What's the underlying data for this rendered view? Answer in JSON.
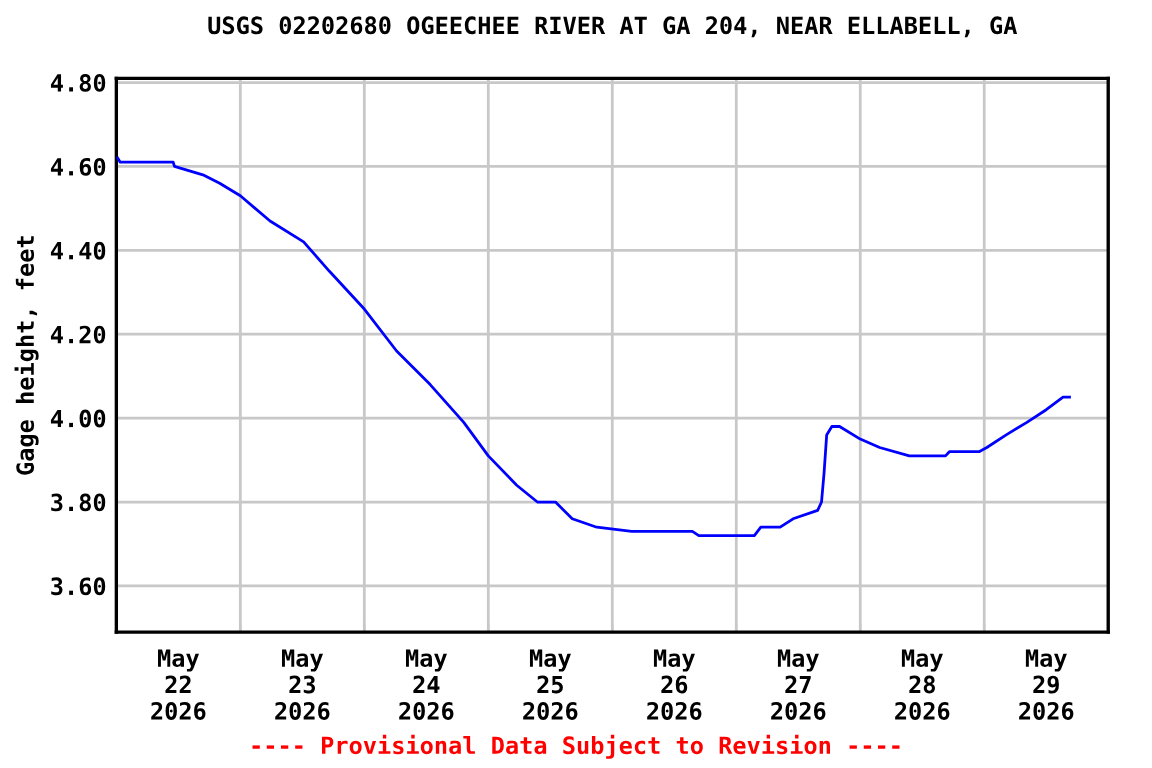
{
  "chart_data": {
    "type": "line",
    "title": "USGS 02202680 OGEECHEE RIVER AT GA 204, NEAR ELLABELL, GA",
    "ylabel": "Gage height, feet",
    "annotations": [
      "---- Provisional Data Subject to Revision ----"
    ],
    "series": [
      {
        "color": "#0000ff",
        "x": [
          "2026-05-22T00:15",
          "2026-05-22T00:45",
          "2026-05-22T11:00",
          "2026-05-22T11:15",
          "2026-05-22T14:00",
          "2026-05-22T16:45",
          "2026-05-22T20:00",
          "2026-05-23T00:00",
          "2026-05-23T05:45",
          "2026-05-23T12:15",
          "2026-05-23T17:15",
          "2026-05-24T00:00",
          "2026-05-24T06:15",
          "2026-05-24T12:45",
          "2026-05-24T19:15",
          "2026-05-25T00:00",
          "2026-05-25T05:30",
          "2026-05-25T09:30",
          "2026-05-25T13:00",
          "2026-05-25T16:15",
          "2026-05-25T21:00",
          "2026-05-26T03:45",
          "2026-05-26T15:30",
          "2026-05-26T16:45",
          "2026-05-27T03:30",
          "2026-05-27T04:45",
          "2026-05-27T08:30",
          "2026-05-27T11:00",
          "2026-05-27T15:45",
          "2026-05-27T16:30",
          "2026-05-27T17:00",
          "2026-05-27T17:30",
          "2026-05-27T18:30",
          "2026-05-27T20:00",
          "2026-05-28T00:00",
          "2026-05-28T03:45",
          "2026-05-28T09:30",
          "2026-05-28T16:30",
          "2026-05-28T17:15",
          "2026-05-28T23:00",
          "2026-05-29T00:30",
          "2026-05-29T04:15",
          "2026-05-29T08:15",
          "2026-05-29T12:00",
          "2026-05-29T15:15",
          "2026-05-29T16:30"
        ],
        "values": [
          4.62,
          4.61,
          4.61,
          4.6,
          4.59,
          4.58,
          4.56,
          4.53,
          4.47,
          4.42,
          4.35,
          4.26,
          4.16,
          4.08,
          3.99,
          3.91,
          3.84,
          3.8,
          3.8,
          3.76,
          3.74,
          3.73,
          3.73,
          3.72,
          3.72,
          3.74,
          3.74,
          3.76,
          3.78,
          3.8,
          3.87,
          3.96,
          3.98,
          3.98,
          3.95,
          3.93,
          3.91,
          3.91,
          3.92,
          3.92,
          3.93,
          3.96,
          3.99,
          4.02,
          4.05,
          4.05
        ]
      }
    ],
    "xlim": [
      "2026-05-22T00:00",
      "2026-05-30T00:00"
    ],
    "xticks": [
      {
        "value": "2026-05-22T00:00",
        "label": null
      },
      {
        "value": "2026-05-22T12:00",
        "label": "May\n22\n2026"
      },
      {
        "value": "2026-05-23T00:00",
        "label": null
      },
      {
        "value": "2026-05-23T12:00",
        "label": "May\n23\n2026"
      },
      {
        "value": "2026-05-24T00:00",
        "label": null
      },
      {
        "value": "2026-05-24T12:00",
        "label": "May\n24\n2026"
      },
      {
        "value": "2026-05-25T00:00",
        "label": null
      },
      {
        "value": "2026-05-25T12:00",
        "label": "May\n25\n2026"
      },
      {
        "value": "2026-05-26T00:00",
        "label": null
      },
      {
        "value": "2026-05-26T12:00",
        "label": "May\n26\n2026"
      },
      {
        "value": "2026-05-27T00:00",
        "label": null
      },
      {
        "value": "2026-05-27T12:00",
        "label": "May\n27\n2026"
      },
      {
        "value": "2026-05-28T00:00",
        "label": null
      },
      {
        "value": "2026-05-28T12:00",
        "label": "May\n28\n2026"
      },
      {
        "value": "2026-05-29T00:00",
        "label": null
      },
      {
        "value": "2026-05-29T12:00",
        "label": "May\n29\n2026"
      },
      {
        "value": "2026-05-30T00:00",
        "label": null
      }
    ],
    "ylim": [
      3.49,
      4.81
    ],
    "yticks": [
      {
        "value": 3.6,
        "label": "3.60"
      },
      {
        "value": 3.8,
        "label": "3.80"
      },
      {
        "value": 4.0,
        "label": "4.00"
      },
      {
        "value": 4.2,
        "label": "4.20"
      },
      {
        "value": 4.4,
        "label": "4.40"
      },
      {
        "value": 4.6,
        "label": "4.60"
      },
      {
        "value": 4.8,
        "label": "4.80"
      }
    ],
    "grid": true,
    "legend": false,
    "marker": "none",
    "line_style": "solid"
  }
}
